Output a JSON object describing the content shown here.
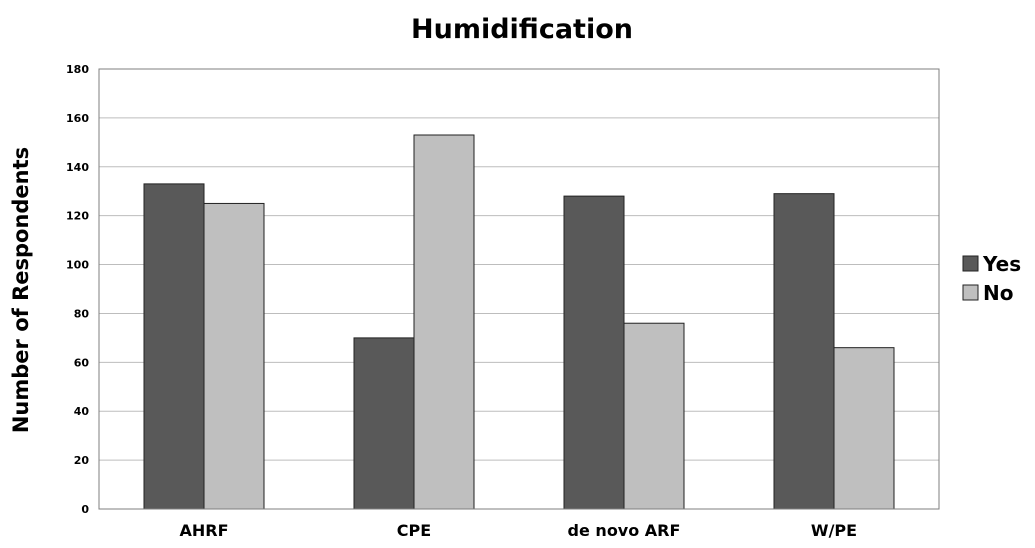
{
  "chart_data": {
    "type": "bar",
    "title": "Humidification",
    "xlabel": "",
    "ylabel": "Number of Respondents",
    "categories": [
      "AHRF",
      "CPE",
      "de novo ARF",
      "W/PE"
    ],
    "series": [
      {
        "name": "Yes",
        "values": [
          133,
          70,
          128,
          129
        ],
        "color": "#595959"
      },
      {
        "name": "No",
        "values": [
          125,
          153,
          76,
          66
        ],
        "color": "#bfbfbf"
      }
    ],
    "ylim": [
      0,
      180
    ],
    "yticks": [
      0,
      20,
      40,
      60,
      80,
      100,
      120,
      140,
      160,
      180
    ],
    "grid": true,
    "legend": "right"
  }
}
